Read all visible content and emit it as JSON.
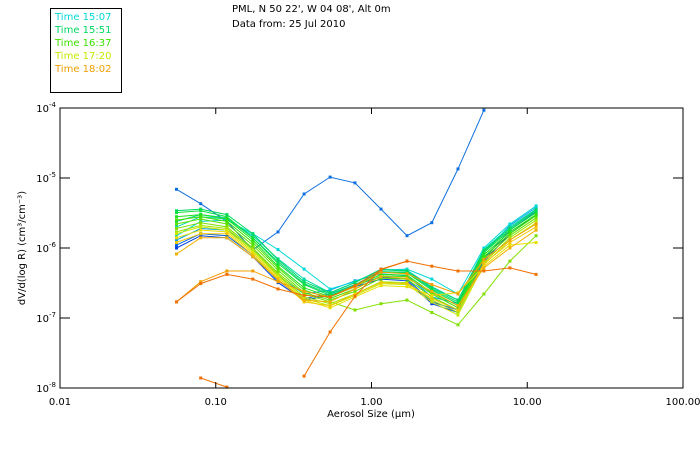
{
  "header": {
    "location_line": "PML, N 50 22', W 04 08', Alt 0m",
    "date_line": "Data from: 25 Jul 2010"
  },
  "legend": [
    {
      "label": "Time 15:07",
      "color": "#00d8d8"
    },
    {
      "label": "Time 15:51",
      "color": "#00d860"
    },
    {
      "label": "Time 16:37",
      "color": "#40e000"
    },
    {
      "label": "Time 17:20",
      "color": "#c8e800"
    },
    {
      "label": "Time 18:02",
      "color": "#f0a000"
    }
  ],
  "chart_data": {
    "type": "line",
    "title": "",
    "xlabel": "Aerosol Size (µm)",
    "ylabel": "dV/d(log R) (cm³/cm⁻³)",
    "xscale": "log",
    "yscale": "log",
    "xlim": [
      0.01,
      100
    ],
    "ylim": [
      1e-08,
      0.0001
    ],
    "x_tick_labels": [
      "0.01",
      "0.10",
      "1.00",
      "10.00",
      "100.00"
    ],
    "x_ticks": [
      0.01,
      0.1,
      1,
      10,
      100
    ],
    "y_ticks": [
      0.0001,
      1e-05,
      1e-06,
      1e-07,
      1e-08
    ],
    "y_tick_labels": [
      {
        "base": "10",
        "exp": "-4"
      },
      {
        "base": "10",
        "exp": "-5"
      },
      {
        "base": "10",
        "exp": "-6"
      },
      {
        "base": "10",
        "exp": "-7"
      },
      {
        "base": "10",
        "exp": "-8"
      }
    ],
    "grid": false,
    "x": [
      0.056,
      0.08,
      0.118,
      0.173,
      0.251,
      0.369,
      0.542,
      0.783,
      1.15,
      1.69,
      2.44,
      3.59,
      5.27,
      7.74,
      11.4
    ],
    "series": [
      {
        "name": "blue-outlier",
        "color": "#1070e0",
        "values": [
          6.9e-06,
          4.3e-06,
          2.4e-06,
          9.4e-07,
          1.7e-06,
          5.9e-06,
          1.03e-05,
          8.5e-06,
          3.6e-06,
          1.5e-06,
          2.3e-06,
          1.35e-05,
          9.3e-05,
          null,
          null
        ]
      },
      {
        "name": "s01",
        "color": "#0040e0",
        "values": [
          1e-06,
          1.5e-06,
          1.4e-06,
          7.5e-07,
          3.2e-07,
          1.8e-07,
          2.1e-07,
          2.8e-07,
          3.6e-07,
          3.4e-07,
          1.6e-07,
          1.2e-07,
          6.5e-07,
          1.6e-06,
          3e-06
        ]
      },
      {
        "name": "s02",
        "color": "#0060e8",
        "values": [
          1.1e-06,
          1.6e-06,
          1.5e-06,
          8e-07,
          3.4e-07,
          1.9e-07,
          2.2e-07,
          3e-07,
          3.8e-07,
          3.6e-07,
          1.7e-07,
          1.3e-07,
          7e-07,
          1.8e-06,
          3.3e-06
        ]
      },
      {
        "name": "s03",
        "color": "#00a0e8",
        "values": [
          1.3e-06,
          1.9e-06,
          1.8e-06,
          1e-06,
          4e-07,
          2.2e-07,
          2.5e-07,
          3.4e-07,
          4.3e-07,
          4e-07,
          2e-07,
          1.6e-07,
          8.5e-07,
          2.1e-06,
          3.8e-06
        ]
      },
      {
        "name": "s04",
        "color": "#00d8d8",
        "values": [
          1.5e-06,
          2.4e-06,
          2.5e-06,
          1.6e-06,
          9.5e-07,
          5e-07,
          2.6e-07,
          3.3e-07,
          4.8e-07,
          5e-07,
          3.6e-07,
          2.2e-07,
          1e-06,
          2.2e-06,
          4e-06
        ]
      },
      {
        "name": "s05",
        "color": "#00d8b0",
        "values": [
          2e-06,
          2.8e-06,
          2.6e-06,
          1.5e-06,
          7e-07,
          3.6e-07,
          2.3e-07,
          3.2e-07,
          5e-07,
          4.8e-07,
          2.8e-07,
          1.8e-07,
          9.5e-07,
          2e-06,
          3.6e-06
        ]
      },
      {
        "name": "s06",
        "color": "#00d880",
        "values": [
          2.4e-06,
          3e-06,
          2.7e-06,
          1.4e-06,
          6.4e-07,
          3.1e-07,
          2.2e-07,
          3e-07,
          4.6e-07,
          4.5e-07,
          2.6e-07,
          1.7e-07,
          9e-07,
          1.9e-06,
          3.4e-06
        ]
      },
      {
        "name": "s07",
        "color": "#00d860",
        "values": [
          3.4e-06,
          3.6e-06,
          3e-06,
          1.6e-06,
          6.8e-07,
          3.3e-07,
          2.3e-07,
          3.2e-07,
          4.9e-07,
          4.7e-07,
          2.7e-07,
          1.8e-07,
          9.2e-07,
          1.9e-06,
          3.5e-06
        ]
      },
      {
        "name": "s08",
        "color": "#10e040",
        "values": [
          3.2e-06,
          3.4e-06,
          2.8e-06,
          1.4e-06,
          6e-07,
          3e-07,
          2.1e-07,
          2.9e-07,
          4.5e-07,
          4.4e-07,
          2.5e-07,
          1.6e-07,
          8.6e-07,
          1.8e-06,
          3.2e-06
        ]
      },
      {
        "name": "s09",
        "color": "#20e020",
        "values": [
          2.8e-06,
          3e-06,
          2.6e-06,
          1.3e-06,
          5.5e-07,
          2.7e-07,
          2e-07,
          2.8e-07,
          4.2e-07,
          4.1e-07,
          2.3e-07,
          1.5e-07,
          8e-07,
          1.7e-06,
          3e-06
        ]
      },
      {
        "name": "s10",
        "color": "#40e000",
        "values": [
          2.5e-06,
          2.8e-06,
          2.4e-06,
          1.2e-06,
          5.2e-07,
          2.5e-07,
          1.9e-07,
          2.6e-07,
          4e-07,
          3.9e-07,
          2.2e-07,
          1.4e-07,
          7.5e-07,
          1.6e-06,
          2.9e-06
        ]
      },
      {
        "name": "s11",
        "color": "#60e000",
        "values": [
          2.2e-06,
          2.6e-06,
          2.2e-06,
          1.1e-06,
          4.8e-07,
          2.3e-07,
          1.8e-07,
          2.4e-07,
          3.7e-07,
          3.6e-07,
          2e-07,
          1.3e-07,
          7e-07,
          1.5e-06,
          2.7e-06
        ]
      },
      {
        "name": "s12",
        "color": "#80e000",
        "values": [
          1.9e-06,
          2.3e-06,
          2e-06,
          1e-06,
          4.4e-07,
          2.2e-07,
          1.7e-07,
          1.3e-07,
          1.6e-07,
          1.8e-07,
          1.2e-07,
          8e-08,
          2.2e-07,
          6.5e-07,
          1.5e-06
        ]
      },
      {
        "name": "s13",
        "color": "#a0e400",
        "values": [
          1.7e-06,
          2.1e-06,
          1.9e-06,
          9.5e-07,
          4.2e-07,
          2e-07,
          1.6e-07,
          2.2e-07,
          3.3e-07,
          3.2e-07,
          1.8e-07,
          1.2e-07,
          6.2e-07,
          1.4e-06,
          2.5e-06
        ]
      },
      {
        "name": "s14",
        "color": "#c8e800",
        "values": [
          1.6e-06,
          2e-06,
          1.8e-06,
          9e-07,
          4e-07,
          1.9e-07,
          1.5e-07,
          2.1e-07,
          3.1e-07,
          3e-07,
          1.7e-07,
          1.1e-07,
          5.8e-07,
          1.3e-06,
          2.3e-06
        ]
      },
      {
        "name": "s15",
        "color": "#e8e000",
        "values": [
          1.4e-06,
          1.8e-06,
          1.7e-06,
          8.5e-07,
          3.8e-07,
          1.8e-07,
          1.4e-07,
          2e-07,
          2.9e-07,
          2.8e-07,
          2.1e-07,
          2.3e-07,
          5.5e-07,
          1.1e-06,
          1.2e-06
        ]
      },
      {
        "name": "s16",
        "color": "#f0c800",
        "values": [
          1.2e-06,
          1.6e-06,
          1.6e-06,
          8e-07,
          3.6e-07,
          1.7e-07,
          1.5e-07,
          2.2e-07,
          3.2e-07,
          3.1e-07,
          1.9e-07,
          1.3e-07,
          6e-07,
          1.2e-06,
          2e-06
        ]
      },
      {
        "name": "s17",
        "color": "#f0b000",
        "values": [
          8.2e-07,
          1.4e-06,
          1.4e-06,
          7.5e-07,
          3.5e-07,
          1.8e-07,
          1.7e-07,
          2.6e-07,
          3.9e-07,
          3.7e-07,
          2.4e-07,
          1.5e-07,
          5.2e-07,
          1e-06,
          1.8e-06
        ]
      },
      {
        "name": "light-orange",
        "color": "#f0a000",
        "values": [
          1.7e-07,
          3.3e-07,
          4.7e-07,
          4.7e-07,
          3.3e-07,
          2.4e-07,
          2e-07,
          2.8e-07,
          4.5e-07,
          4.3e-07,
          3e-07,
          2.2e-07,
          6.8e-07,
          1.3e-06,
          2.2e-06
        ]
      },
      {
        "name": "dark-orange",
        "color": "#f07000",
        "values": [
          1.7e-07,
          3.1e-07,
          4.2e-07,
          3.6e-07,
          2.6e-07,
          2.1e-07,
          2e-07,
          2.9e-07,
          4.9e-07,
          6.5e-07,
          5.5e-07,
          4.7e-07,
          4.7e-07,
          5.2e-07,
          4.2e-07
        ]
      },
      {
        "name": "orange-low-rise",
        "color": "#f07000",
        "values": [
          null,
          null,
          null,
          null,
          null,
          1.48e-08,
          6.3e-08,
          2.05e-07,
          5e-07,
          6.5e-07,
          null,
          null,
          null,
          null,
          null
        ]
      },
      {
        "name": "orange-low-fragment",
        "color": "#f07000",
        "values": [
          null,
          1.39e-08,
          1.03e-08,
          null,
          null,
          null,
          null,
          null,
          null,
          null,
          null,
          null,
          null,
          null,
          null
        ]
      }
    ]
  }
}
